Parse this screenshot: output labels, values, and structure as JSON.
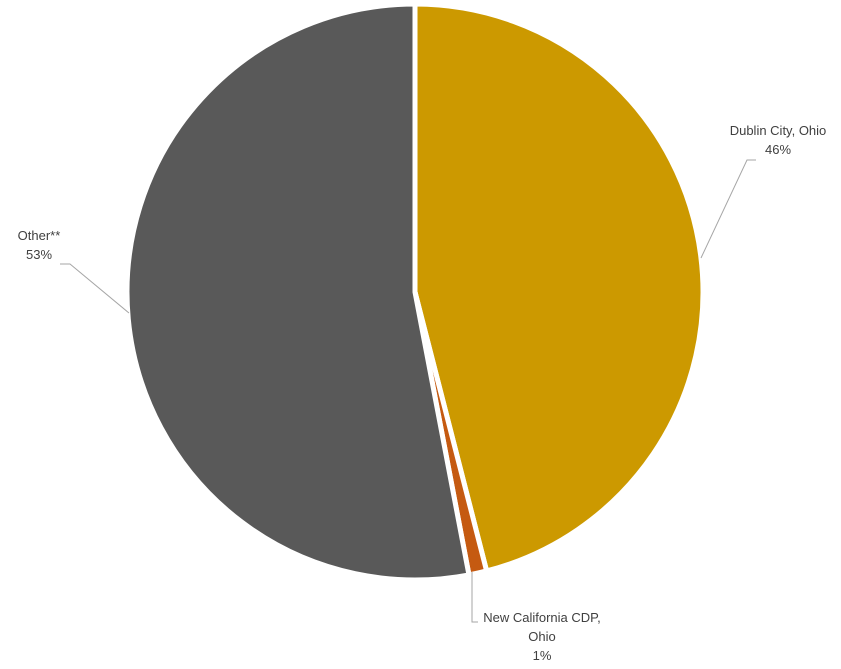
{
  "chart_data": {
    "type": "pie",
    "slices": [
      {
        "label": [
          "Dublin City, Ohio"
        ],
        "value": 46,
        "pct_label": "46%",
        "color": "#CC9900"
      },
      {
        "label": [
          "New California CDP,",
          "Ohio"
        ],
        "value": 1,
        "pct_label": "1%",
        "color": "#C55A11"
      },
      {
        "label": [
          "Other**"
        ],
        "value": 53,
        "pct_label": "53%",
        "color": "#595959"
      }
    ],
    "start_angle_deg": 0,
    "direction": "clockwise",
    "data_labels": "outside-with-leader-lines"
  }
}
